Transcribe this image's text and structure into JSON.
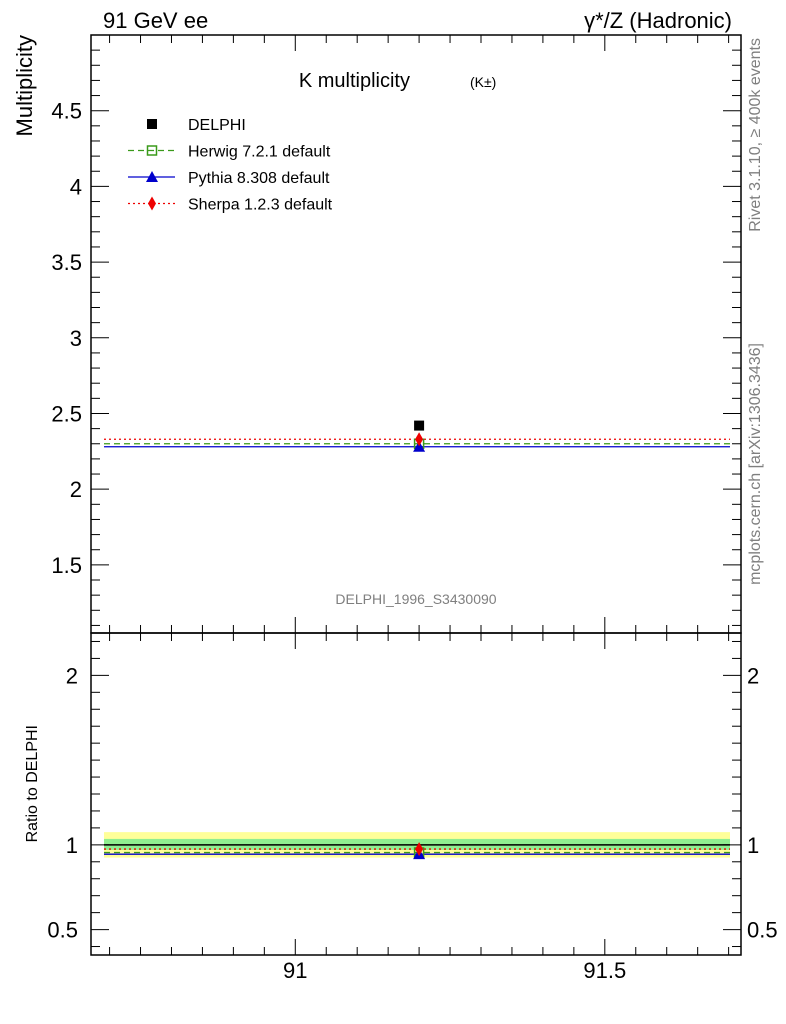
{
  "header": {
    "left": "91 GeV ee",
    "right": "γ*/Z (Hadronic)"
  },
  "side_text": {
    "upper": "Rivet 3.1.10, ≥ 400k events",
    "lower": "mcplots.cern.ch [arXiv:1306.3436]"
  },
  "watermark": "DELPHI_1996_S3430090",
  "colors": {
    "data": "#000000",
    "herwig": "#3a9a1a",
    "pythia": "#0000cc",
    "sherpa": "#ee0000",
    "band_inner": "#90ee90",
    "band_outer": "#ffff99"
  },
  "chart_data": [
    {
      "type": "scatter",
      "title": "K multiplicity",
      "title_sub": "(K±)",
      "ylabel": "Multiplicity",
      "xlim": [
        90.67,
        91.72
      ],
      "ylim": [
        1.05,
        5.0
      ],
      "yticks": [
        "1.5",
        "2",
        "2.5",
        "3",
        "3.5",
        "4",
        "4.5"
      ],
      "legend_position": "top-left",
      "series": [
        {
          "name": "DELPHI",
          "x": 91.2,
          "y": 2.42,
          "marker": "square-filled",
          "style": "none"
        },
        {
          "name": "Herwig 7.2.1 default",
          "x": 91.2,
          "y": 2.3,
          "marker": "square-open",
          "style": "dashed"
        },
        {
          "name": "Pythia 8.308 default",
          "x": 91.2,
          "y": 2.28,
          "marker": "triangle",
          "style": "solid"
        },
        {
          "name": "Sherpa 1.2.3 default",
          "x": 91.2,
          "y": 2.33,
          "marker": "diamond",
          "style": "dotted"
        }
      ]
    },
    {
      "type": "scatter",
      "ylabel": "Ratio to DELPHI",
      "xlim": [
        90.67,
        91.72
      ],
      "ylim": [
        0.35,
        2.25
      ],
      "xticks": [
        "91",
        "91.5"
      ],
      "yticks": [
        "0.5",
        "1",
        "2"
      ],
      "uncertainty_bands": {
        "inner": [
          0.97,
          1.035
        ],
        "outer": [
          0.925,
          1.075
        ]
      },
      "series": [
        {
          "name": "Herwig 7.2.1 default",
          "y": 0.955
        },
        {
          "name": "Pythia 8.308 default",
          "y": 0.945
        },
        {
          "name": "Sherpa 1.2.3 default",
          "y": 0.975
        }
      ]
    }
  ]
}
